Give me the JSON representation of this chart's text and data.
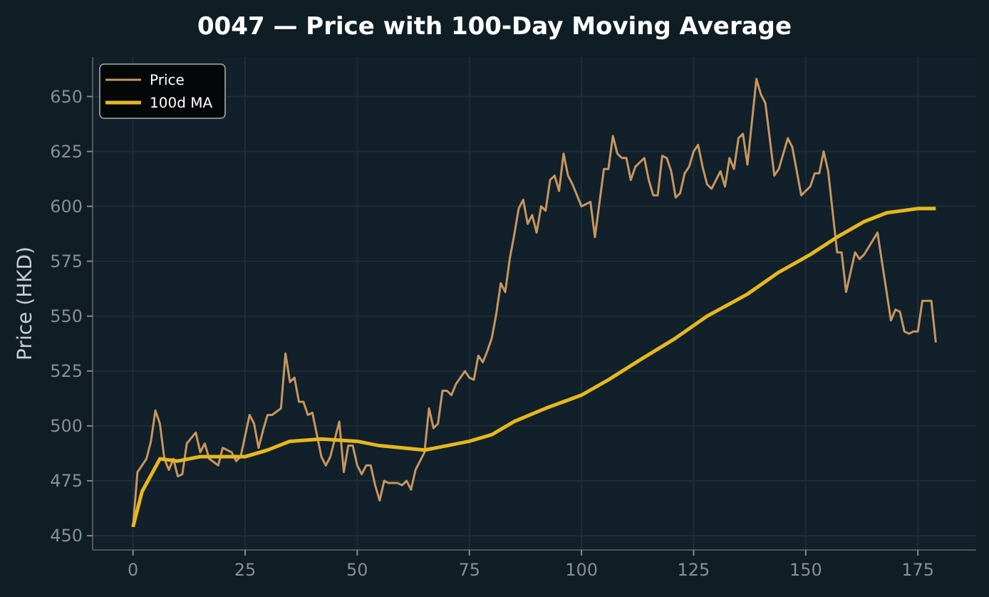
{
  "chart_data": {
    "type": "line",
    "title": "0047 — Price with 100-Day Moving Average",
    "ylabel": "Price (HKD)",
    "xlim": [
      -9,
      188
    ],
    "xticks": [
      0,
      25,
      50,
      75,
      100,
      125,
      150,
      175
    ],
    "ylim": [
      443.5,
      668
    ],
    "yticks": [
      450,
      475,
      500,
      525,
      550,
      575,
      600,
      625,
      650
    ],
    "grid": true,
    "legend": "top left",
    "line_style": "solid",
    "marker": "none",
    "series": [
      {
        "name": "Price",
        "color": "#c8965f",
        "x": [
          0,
          1,
          3,
          4,
          5,
          6,
          7,
          8,
          9,
          10,
          11,
          12,
          14,
          15,
          16,
          17,
          19,
          20,
          22,
          23,
          24,
          26,
          27,
          28,
          29,
          30,
          31,
          33,
          34,
          35,
          36,
          37,
          38,
          39,
          40,
          42,
          43,
          44,
          46,
          47,
          48,
          49,
          50,
          51,
          52,
          53,
          54,
          55,
          56,
          57,
          59,
          60,
          61,
          62,
          63,
          65,
          66,
          67,
          68,
          69,
          70,
          71,
          72,
          73,
          74,
          75,
          76,
          77,
          78,
          79,
          80,
          81,
          82,
          83,
          84,
          85,
          86,
          87,
          88,
          89,
          90,
          91,
          92,
          93,
          94,
          95,
          96,
          97,
          98,
          100,
          102,
          103,
          105,
          106,
          107,
          108,
          109,
          110,
          111,
          112,
          114,
          115,
          116,
          117,
          118,
          119,
          120,
          121,
          122,
          123,
          124,
          125,
          126,
          127,
          128,
          129,
          130,
          131,
          132,
          133,
          134,
          135,
          136,
          137,
          139,
          140,
          141,
          143,
          144,
          146,
          147,
          149,
          151,
          152,
          153,
          154,
          155,
          157,
          158,
          159,
          161,
          162,
          163,
          166,
          169,
          170,
          171,
          172,
          173,
          174,
          175,
          176,
          178,
          179
        ],
        "values": [
          454,
          479,
          485,
          493,
          507,
          501,
          485,
          480,
          485,
          477,
          478,
          492,
          497,
          488,
          492,
          485,
          482,
          490,
          488,
          484,
          486,
          505,
          501,
          490,
          498,
          505,
          505,
          508,
          533,
          520,
          522,
          511,
          511,
          505,
          506,
          486,
          482,
          486,
          502,
          479,
          491,
          491,
          482,
          478,
          482,
          482,
          473,
          466,
          475,
          474,
          474,
          473,
          475,
          471,
          480,
          488,
          508,
          499,
          501,
          516,
          516,
          514,
          519,
          522,
          525,
          522,
          521,
          532,
          529,
          534,
          540,
          551,
          565,
          561,
          576,
          587,
          599,
          603,
          592,
          596,
          588,
          600,
          598,
          612,
          614,
          607,
          624,
          614,
          610,
          600,
          602,
          586,
          617,
          617,
          632,
          624,
          622,
          622,
          612,
          618,
          622,
          612,
          605,
          605,
          623,
          622,
          616,
          604,
          606,
          615,
          618,
          625,
          628,
          618,
          610,
          608,
          612,
          616,
          609,
          622,
          617,
          631,
          633,
          619,
          658,
          651,
          647,
          614,
          617,
          631,
          627,
          605,
          609,
          615,
          615,
          625,
          616,
          579,
          579,
          561,
          579,
          576,
          578,
          588,
          548,
          553,
          552,
          543,
          542,
          543,
          543,
          557,
          557,
          538
        ]
      },
      {
        "name": "100d MA",
        "color": "#e6b81e",
        "x": [
          0,
          2,
          6,
          10,
          15,
          25,
          30,
          35,
          42,
          50,
          55,
          65,
          70,
          75,
          80,
          85,
          92,
          100,
          106,
          113,
          121,
          128,
          137,
          144,
          151,
          157,
          163,
          168,
          175,
          179
        ],
        "values": [
          454,
          470,
          485,
          484,
          486,
          486,
          489,
          493,
          494,
          493,
          491,
          489,
          491,
          493,
          496,
          502,
          508,
          514,
          521,
          530,
          540,
          550,
          560,
          570,
          578,
          586,
          593,
          597,
          599,
          599
        ]
      }
    ]
  }
}
